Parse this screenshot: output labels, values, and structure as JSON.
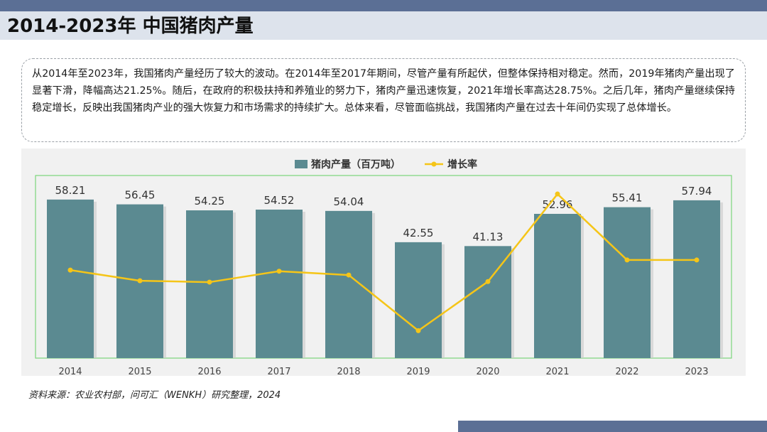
{
  "title": "2014-2023年 中国猪肉产量",
  "description": "从2014年至2023年，我国猪肉产量经历了较大的波动。在2014年至2017年期间，尽管产量有所起伏，但整体保持相对稳定。然而，2019年猪肉产量出现了显著下滑，降幅高达21.25%。随后，在政府的积极扶持和养殖业的努力下，猪肉产量迅速恢复，2021年增长率高达28.75%。之后几年，猪肉产量继续保持稳定增长，反映出我国猪肉产业的强大恢复力和市场需求的持续扩大。总体来看，尽管面临挑战，我国猪肉产量在过去十年间仍实现了总体增长。",
  "source": "资料来源：农业农村部，问可汇（WENKH）研究整理，2024",
  "colors": {
    "bar": "#5b8a91",
    "line": "#f5c518",
    "header_bar": "#5b6f95",
    "title_band": "#dde3ec",
    "plot_border": "#7cd67c"
  },
  "chart_data": {
    "type": "bar",
    "categories": [
      "2014",
      "2015",
      "2016",
      "2017",
      "2018",
      "2019",
      "2020",
      "2021",
      "2022",
      "2023"
    ],
    "series": [
      {
        "name": "猪肉产量（百万吨）",
        "type": "bar",
        "axis": "left",
        "values": [
          58.21,
          56.45,
          54.25,
          54.52,
          54.04,
          42.55,
          41.13,
          52.96,
          55.41,
          57.94
        ]
      },
      {
        "name": "增长率",
        "type": "line",
        "axis": "right",
        "values": [
          0.9,
          -3.0,
          -3.5,
          0.5,
          -0.9,
          -21.25,
          -3.3,
          28.75,
          4.6,
          4.6
        ]
      }
    ],
    "ylim": [
      0,
      60
    ],
    "y2lim": [
      -30,
      35
    ],
    "legend": "top-center",
    "grid": false
  }
}
